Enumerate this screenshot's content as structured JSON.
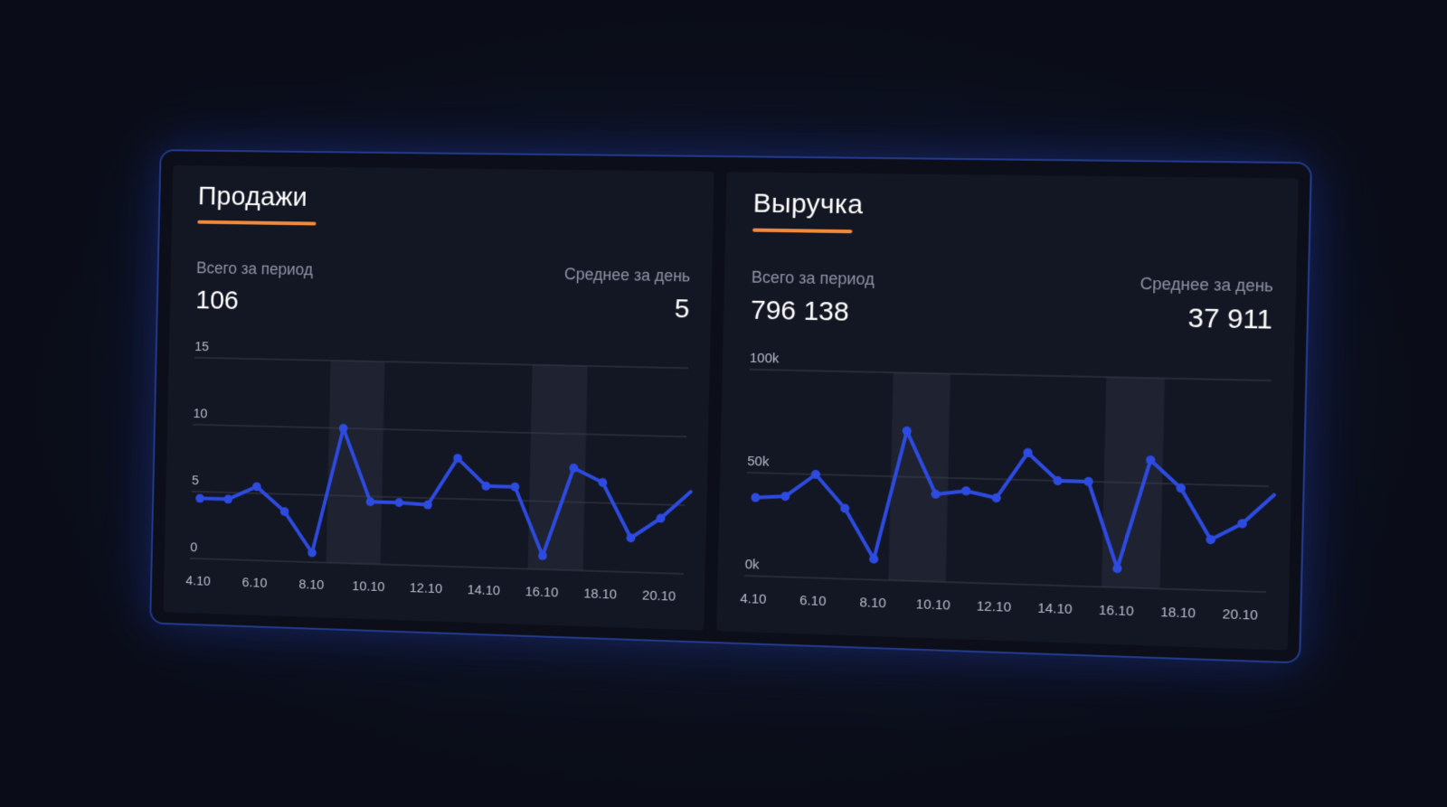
{
  "panels": [
    {
      "title": "Продажи",
      "total_label": "Всего за период",
      "total_value": "106",
      "avg_label": "Среднее за день",
      "avg_value": "5"
    },
    {
      "title": "Выручка",
      "total_label": "Всего за период",
      "total_value": "796 138",
      "avg_label": "Среднее за день",
      "avg_value": "37 911"
    }
  ],
  "colors": {
    "accent_underline": "#f08a3a",
    "line": "#2d4be0",
    "highlight_band": "#1f2230",
    "gridline": "#3a3e4d"
  },
  "chart_data": [
    {
      "type": "line",
      "title": "Продажи",
      "x": [
        "4.10",
        "5.10",
        "6.10",
        "7.10",
        "8.10",
        "9.10",
        "10.10",
        "11.10",
        "12.10",
        "13.10",
        "14.10",
        "15.10",
        "16.10",
        "17.10",
        "18.10",
        "19.10",
        "20.10",
        "21.10"
      ],
      "xticks": [
        "4.10",
        "6.10",
        "8.10",
        "10.10",
        "12.10",
        "14.10",
        "16.10",
        "18.10",
        "20.10"
      ],
      "yticks": [
        "0",
        "5",
        "10",
        "15"
      ],
      "ylim": [
        0,
        15
      ],
      "series": [
        {
          "values": [
            4.5,
            4.5,
            5.5,
            3.7,
            0.7,
            10,
            4.6,
            4.6,
            4.5,
            8,
            6,
            6,
            1,
            7.5,
            6.5,
            2.5,
            4,
            6
          ]
        }
      ],
      "highlight_x": [
        "9.10",
        "16.10"
      ],
      "grid": true
    },
    {
      "type": "line",
      "title": "Выручка",
      "x": [
        "4.10",
        "5.10",
        "6.10",
        "7.10",
        "8.10",
        "9.10",
        "10.10",
        "11.10",
        "12.10",
        "13.10",
        "14.10",
        "15.10",
        "16.10",
        "17.10",
        "18.10",
        "19.10",
        "20.10",
        "21.10"
      ],
      "xticks": [
        "4.10",
        "6.10",
        "8.10",
        "10.10",
        "12.10",
        "14.10",
        "16.10",
        "18.10",
        "20.10"
      ],
      "yticks": [
        "0k",
        "50k",
        "100k"
      ],
      "ylim": [
        0,
        100000
      ],
      "series": [
        {
          "values": [
            38000,
            39000,
            50000,
            34000,
            10000,
            72000,
            42000,
            44000,
            41000,
            63000,
            50000,
            50000,
            9000,
            61000,
            48000,
            24000,
            32000,
            46000
          ]
        }
      ],
      "highlight_x": [
        "9.10",
        "16.10"
      ],
      "grid": true
    }
  ]
}
